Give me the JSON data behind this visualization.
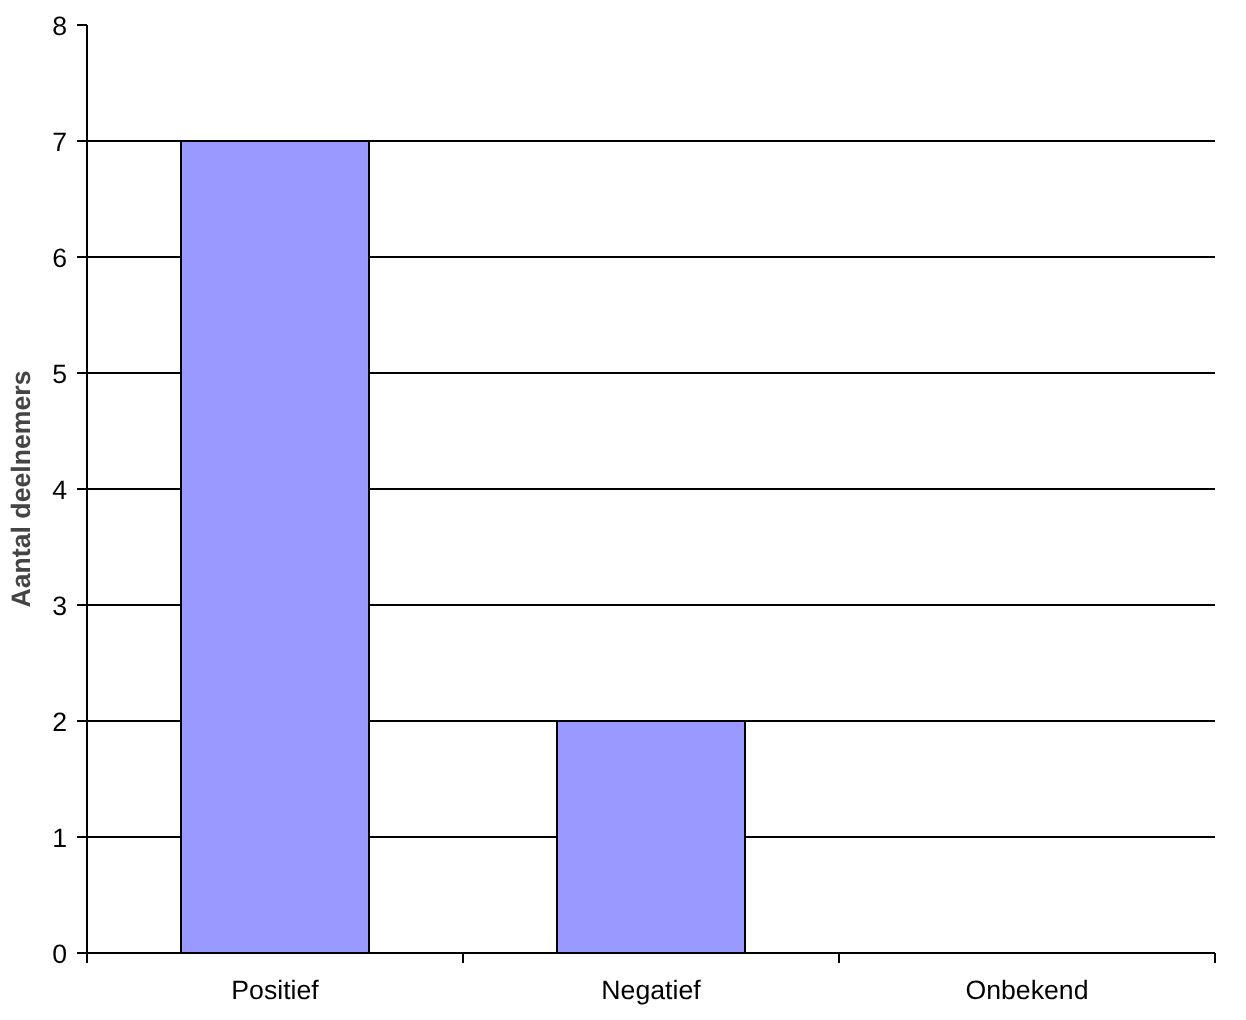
{
  "chart_data": {
    "type": "bar",
    "ylabel": "Aantal deelnemers",
    "categories": [
      "Positief",
      "Negatief",
      "Onbekend"
    ],
    "values": [
      7,
      2,
      0
    ],
    "color": "#9999ff",
    "ylim": [
      0,
      8
    ],
    "yticks": [
      0,
      1,
      2,
      3,
      4,
      5,
      6,
      7,
      8
    ],
    "grid": "y"
  }
}
